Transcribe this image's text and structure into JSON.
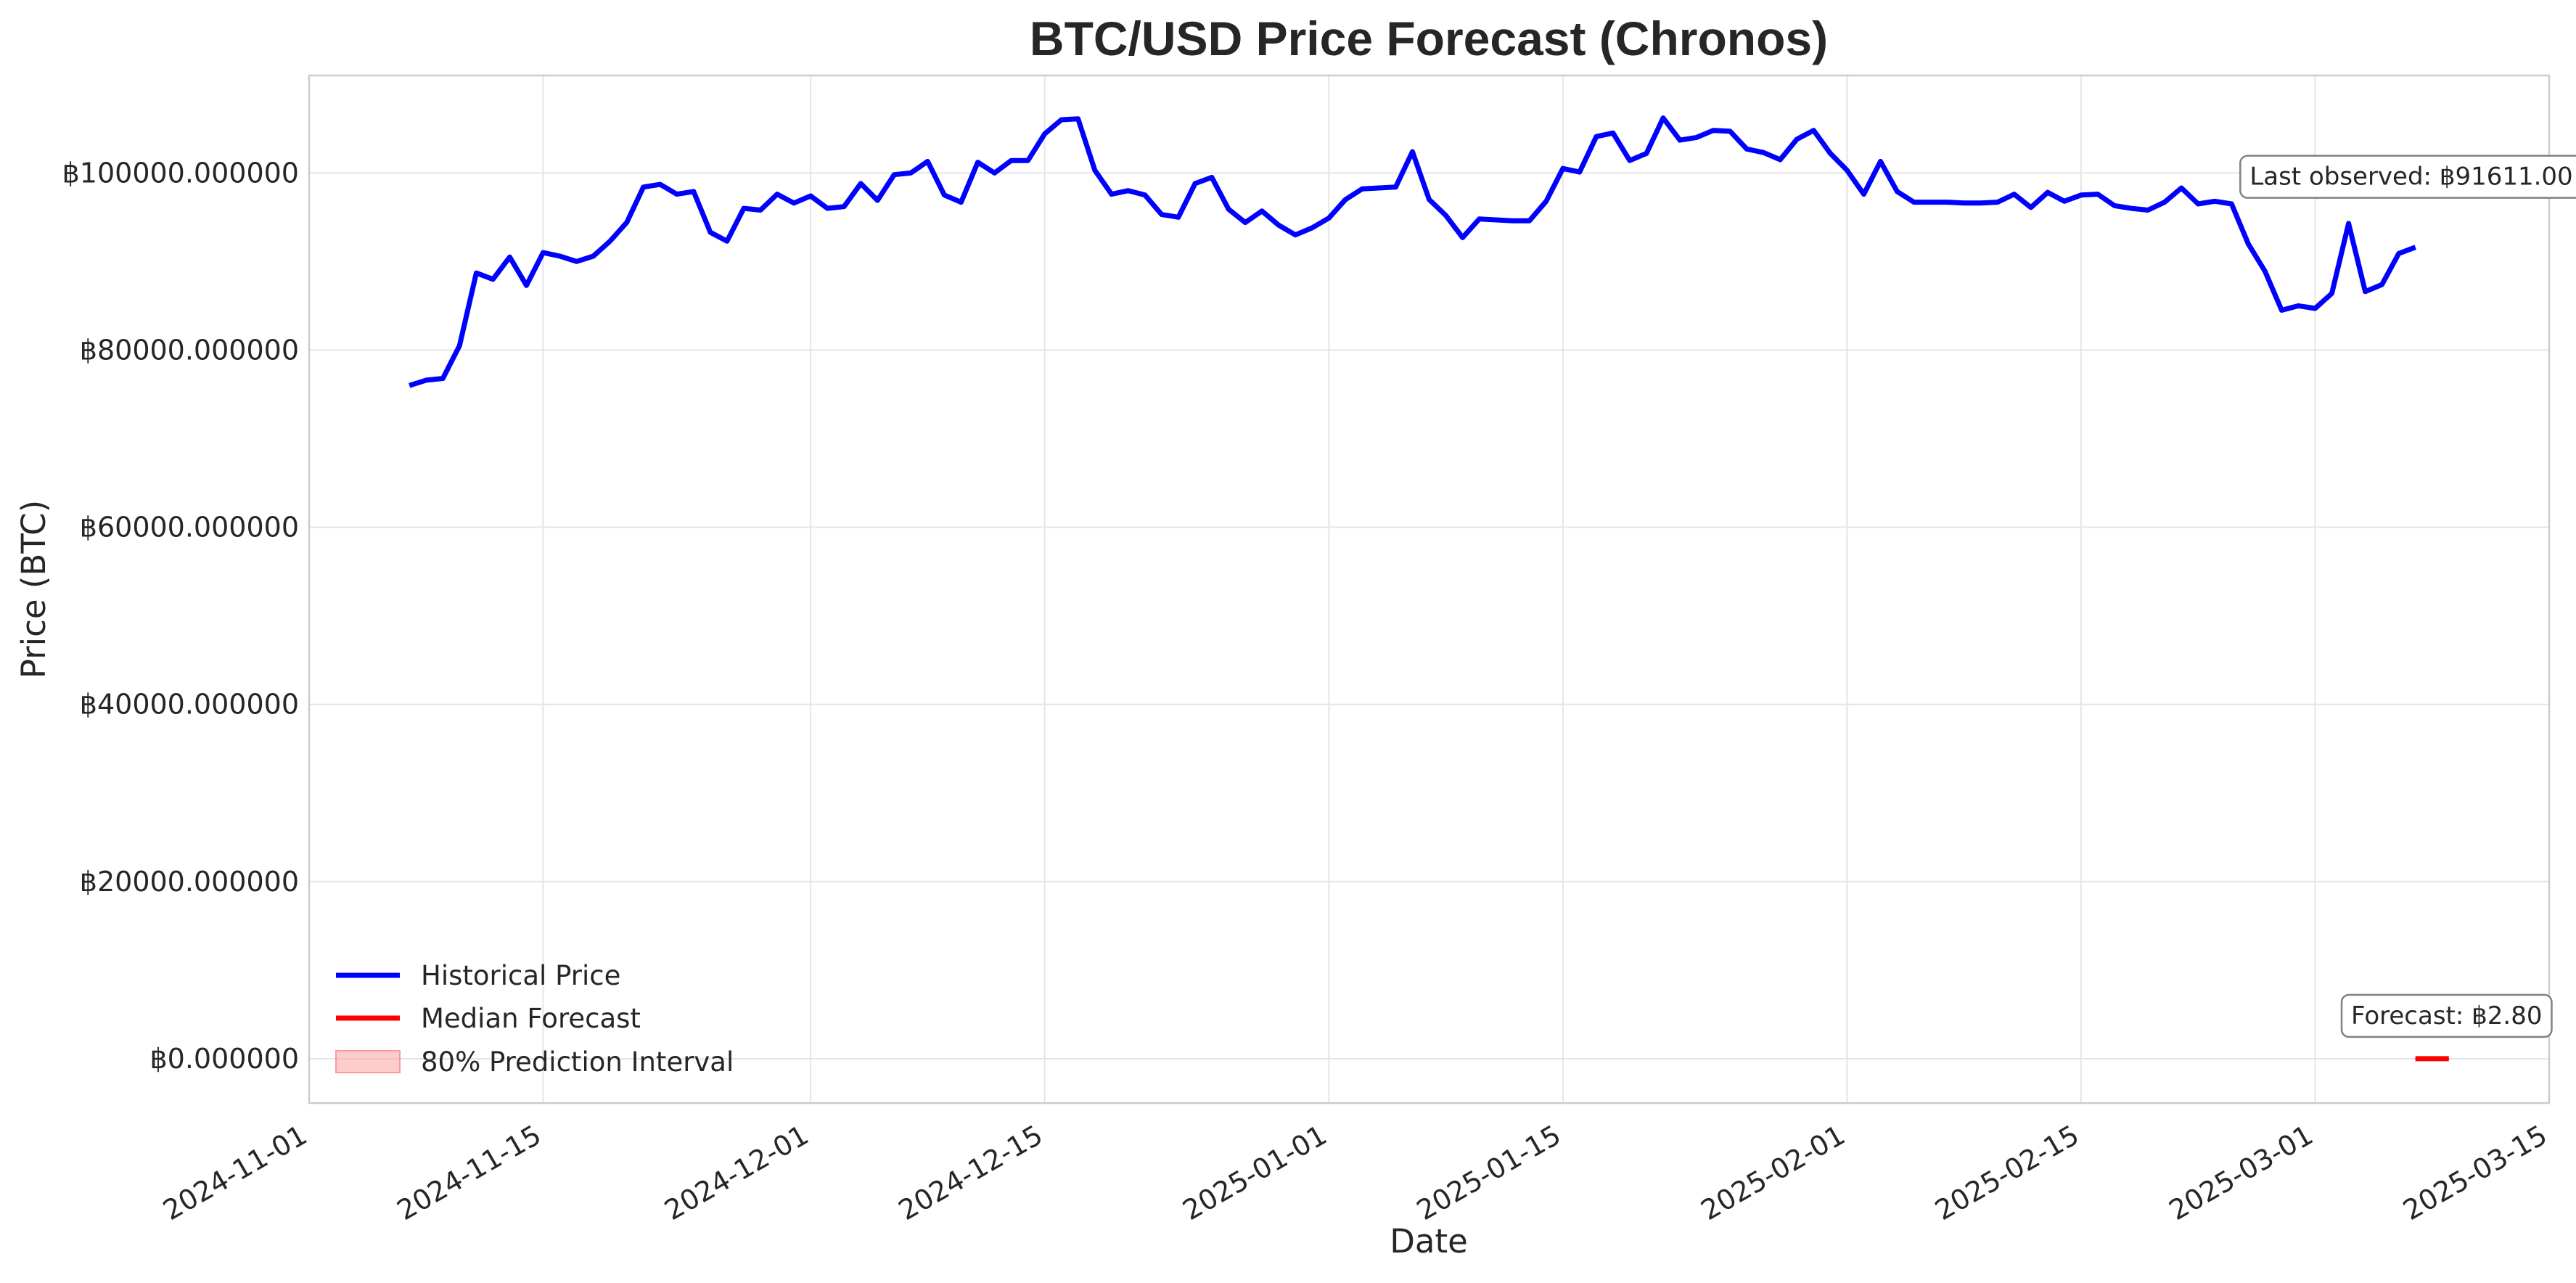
{
  "chart_data": {
    "type": "line",
    "title": "BTC/USD Price Forecast (Chronos)",
    "xlabel": "Date",
    "ylabel": "Price (BTC)",
    "xlim": [
      "2024-11-01",
      "2025-03-15"
    ],
    "ylim": [
      -5000,
      111000
    ],
    "grid": true,
    "legend_position": "lower-left",
    "x_ticks": [
      "2024-11-01",
      "2024-11-15",
      "2024-12-01",
      "2024-12-15",
      "2025-01-01",
      "2025-01-15",
      "2025-02-01",
      "2025-02-15",
      "2025-03-01",
      "2025-03-15"
    ],
    "y_ticks": [
      0,
      20000,
      40000,
      60000,
      80000,
      100000
    ],
    "y_tick_labels": [
      "฿0.000000",
      "฿20000.000000",
      "฿40000.000000",
      "฿60000.000000",
      "฿80000.000000",
      "฿100000.000000"
    ],
    "series": [
      {
        "name": "Historical Price",
        "color": "#0000ff",
        "start_date": "2024-11-07",
        "values": [
          76000,
          76600,
          76800,
          80500,
          88700,
          88000,
          90500,
          87300,
          91000,
          90600,
          90000,
          90600,
          92300,
          94400,
          98400,
          98700,
          97600,
          97900,
          93300,
          92300,
          96000,
          95800,
          97600,
          96600,
          97400,
          96000,
          96200,
          98800,
          96900,
          99800,
          100000,
          101300,
          97500,
          96700,
          101200,
          100000,
          101400,
          101400,
          104400,
          106000,
          106100,
          100300,
          97600,
          98000,
          97500,
          95300,
          95000,
          98800,
          99500,
          95900,
          94400,
          95700,
          94100,
          93000,
          93800,
          94900,
          97000,
          98200,
          98300,
          98400,
          102400,
          97000,
          95200,
          92700,
          94800,
          94700,
          94600,
          94600,
          96800,
          100500,
          100100,
          104100,
          104500,
          101400,
          102200,
          106200,
          103700,
          104000,
          104800,
          104700,
          102700,
          102300,
          101500,
          103800,
          104800,
          102200,
          100300,
          97600,
          101300,
          97900,
          96700,
          96700,
          96700,
          96600,
          96600,
          96700,
          97600,
          96100,
          97800,
          96800,
          97500,
          97600,
          96300,
          96000,
          95800,
          96700,
          98300,
          96500,
          96800,
          96500,
          92000,
          88900,
          84500,
          85000,
          84700,
          86400,
          94300,
          86600,
          87400,
          90900,
          91611
        ]
      },
      {
        "name": "Median Forecast",
        "color": "#ff0000",
        "dates": [
          "2025-03-07",
          "2025-03-09"
        ],
        "values": [
          2.8,
          2.8
        ]
      }
    ],
    "prediction_interval": {
      "name": "80% Prediction Interval",
      "color": "#ff9999",
      "dates": [
        "2025-03-07",
        "2025-03-09"
      ],
      "lower": [
        2.5,
        2.5
      ],
      "upper": [
        3.1,
        3.1
      ]
    },
    "annotations": [
      {
        "name": "last-observed",
        "text": "Last observed: ฿91611.00",
        "date": "2025-03-06",
        "value": 91611
      },
      {
        "name": "forecast",
        "text": "Forecast: ฿2.80",
        "date": "2025-03-08",
        "value": 2.8
      }
    ]
  }
}
